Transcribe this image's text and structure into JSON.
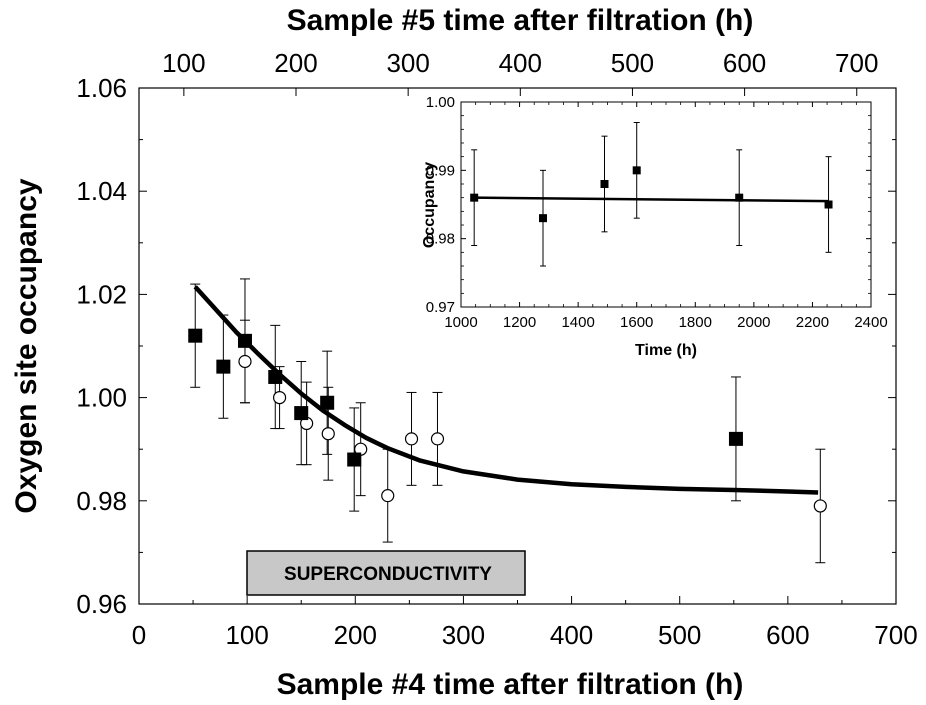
{
  "chart_data": [
    {
      "type": "scatter",
      "xlabel": "Sample #4 time after filtration (h)",
      "x2label": "Sample #5 time after filtration (h)",
      "ylabel": "Oxygen site occupancy",
      "xlim": [
        0,
        700
      ],
      "x2lim": [
        60,
        735
      ],
      "ylim": [
        0.96,
        1.06
      ],
      "xticks": [
        0,
        100,
        200,
        300,
        400,
        500,
        600,
        700
      ],
      "x2ticks": [
        100,
        200,
        300,
        400,
        500,
        600,
        700
      ],
      "yticks": [
        "0.96",
        "0.98",
        "1.00",
        "1.02",
        "1.04",
        "1.06"
      ],
      "annotation": "SUPERCONDUCTIVITY",
      "series": [
        {
          "marker": "filled-square",
          "x": [
            52,
            78,
            98,
            126,
            150,
            174,
            199,
            552
          ],
          "y": [
            1.012,
            1.006,
            1.011,
            1.004,
            0.997,
            0.999,
            0.988,
            0.992
          ],
          "err": [
            0.01,
            0.01,
            0.012,
            0.01,
            0.01,
            0.01,
            0.01,
            0.012
          ]
        },
        {
          "marker": "open-circle",
          "x": [
            98,
            130,
            155,
            175,
            205,
            230,
            252,
            276,
            630
          ],
          "y": [
            1.007,
            1.0,
            0.995,
            0.993,
            0.99,
            0.981,
            0.992,
            0.992,
            0.979
          ],
          "err": [
            0.008,
            0.006,
            0.008,
            0.009,
            0.009,
            0.009,
            0.009,
            0.009,
            0.011
          ]
        },
        {
          "marker": "line",
          "x": [
            52,
            70,
            90,
            110,
            130,
            150,
            170,
            190,
            210,
            230,
            260,
            300,
            350,
            400,
            450,
            500,
            550,
            600,
            628
          ],
          "y": [
            1.0215,
            1.0173,
            1.0127,
            1.0085,
            1.0045,
            1.0008,
            0.9975,
            0.9947,
            0.9922,
            0.9902,
            0.9878,
            0.9857,
            0.9841,
            0.9832,
            0.9827,
            0.9823,
            0.9821,
            0.9818,
            0.9816
          ]
        }
      ]
    },
    {
      "type": "scatter",
      "xlabel": "Time (h)",
      "ylabel": "Occupancy",
      "xlim": [
        1000,
        2400
      ],
      "ylim": [
        0.97,
        1.0
      ],
      "xticks": [
        1000,
        1200,
        1400,
        1600,
        1800,
        2000,
        2200,
        2400
      ],
      "yticks": [
        "0.97",
        "0.98",
        "0.99",
        "1.00"
      ],
      "series": [
        {
          "marker": "filled-square",
          "x": [
            1045,
            1280,
            1490,
            1600,
            1950,
            2255
          ],
          "y": [
            0.986,
            0.983,
            0.988,
            0.99,
            0.986,
            0.985
          ],
          "err": [
            0.007,
            0.007,
            0.007,
            0.007,
            0.007,
            0.007
          ]
        },
        {
          "marker": "line",
          "x": [
            1045,
            2255
          ],
          "y": [
            0.986,
            0.9855
          ]
        }
      ]
    }
  ]
}
